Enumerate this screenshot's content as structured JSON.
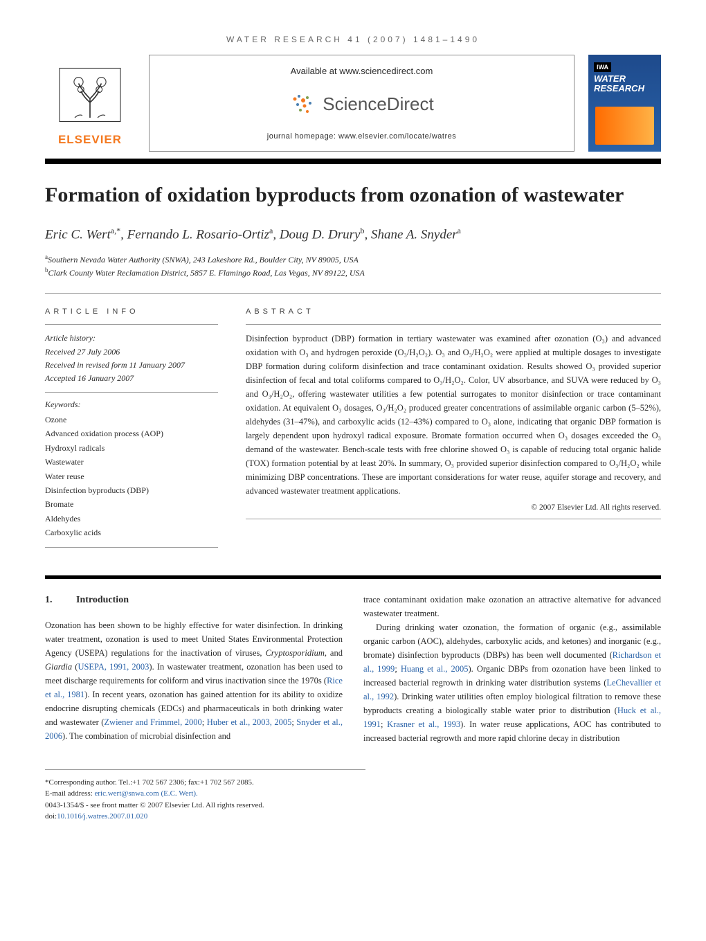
{
  "journal_ref": "WATER RESEARCH 41 (2007) 1481–1490",
  "banner": {
    "available": "Available at www.sciencedirect.com",
    "brand": "ScienceDirect",
    "homepage": "journal homepage: www.elsevier.com/locate/watres"
  },
  "elsevier": "ELSEVIER",
  "cover": {
    "iwa": "IWA",
    "title_line1": "WATER",
    "title_line2": "RESEARCH"
  },
  "title": "Formation of oxidation byproducts from ozonation of wastewater",
  "authors_html": "Eric C. Wert<sup>a,*</sup>, Fernando L. Rosario-Ortiz<sup>a</sup>, Doug D. Drury<sup>b</sup>, Shane A. Snyder<sup>a</sup>",
  "affiliations": {
    "a": "Southern Nevada Water Authority (SNWA), 243 Lakeshore Rd., Boulder City, NV 89005, USA",
    "b": "Clark County Water Reclamation District, 5857 E. Flamingo Road, Las Vegas, NV 89122, USA"
  },
  "labels": {
    "article_info": "ARTICLE INFO",
    "abstract": "ABSTRACT",
    "history": "Article history:",
    "keywords": "Keywords:"
  },
  "history": {
    "received": "Received 27 July 2006",
    "revised": "Received in revised form 11 January 2007",
    "accepted": "Accepted 16 January 2007"
  },
  "keywords": [
    "Ozone",
    "Advanced oxidation process (AOP)",
    "Hydroxyl radicals",
    "Wastewater",
    "Water reuse",
    "Disinfection byproducts (DBP)",
    "Bromate",
    "Aldehydes",
    "Carboxylic acids"
  ],
  "abstract": "Disinfection byproduct (DBP) formation in tertiary wastewater was examined after ozonation (O₃) and advanced oxidation with O₃ and hydrogen peroxide (O₃/H₂O₂). O₃ and O₃/H₂O₂ were applied at multiple dosages to investigate DBP formation during coliform disinfection and trace contaminant oxidation. Results showed O₃ provided superior disinfection of fecal and total coliforms compared to O₃/H₂O₂. Color, UV absorbance, and SUVA were reduced by O₃ and O₃/H₂O₂, offering wastewater utilities a few potential surrogates to monitor disinfection or trace contaminant oxidation. At equivalent O₃ dosages, O₃/H₂O₂ produced greater concentrations of assimilable organic carbon (5–52%), aldehydes (31–47%), and carboxylic acids (12–43%) compared to O₃ alone, indicating that organic DBP formation is largely dependent upon hydroxyl radical exposure. Bromate formation occurred when O₃ dosages exceeded the O₃ demand of the wastewater. Bench-scale tests with free chlorine showed O₃ is capable of reducing total organic halide (TOX) formation potential by at least 20%. In summary, O₃ provided superior disinfection compared to O₃/H₂O₂ while minimizing DBP concentrations. These are important considerations for water reuse, aquifer storage and recovery, and advanced wastewater treatment applications.",
  "copyright": "© 2007 Elsevier Ltd. All rights reserved.",
  "intro": {
    "num": "1.",
    "heading": "Introduction"
  },
  "body": {
    "col1_p1_html": "Ozonation has been shown to be highly effective for water disinfection. In drinking water treatment, ozonation is used to meet United States Environmental Protection Agency (USEPA) regulations for the inactivation of viruses, <i>Cryptosporidium</i>, and <i>Giardia</i> (<span class=\"ref-link\">USEPA, 1991, 2003</span>). In wastewater treatment, ozonation has been used to meet discharge requirements for coliform and virus inactivation since the 1970s (<span class=\"ref-link\">Rice et al., 1981</span>). In recent years, ozonation has gained attention for its ability to oxidize endocrine disrupting chemicals (EDCs) and pharmaceuticals in both drinking water and wastewater (<span class=\"ref-link\">Zwiener and Frimmel, 2000</span>; <span class=\"ref-link\">Huber et al., 2003, 2005</span>; <span class=\"ref-link\">Snyder et al., 2006</span>). The combination of microbial disinfection and",
    "col2_p1": "trace contaminant oxidation make ozonation an attractive alternative for advanced wastewater treatment.",
    "col2_p2_html": "During drinking water ozonation, the formation of organic (e.g., assimilable organic carbon (AOC), aldehydes, carboxylic acids, and ketones) and inorganic (e.g., bromate) disinfection byproducts (DBPs) has been well documented (<span class=\"ref-link\">Richardson et al., 1999</span>; <span class=\"ref-link\">Huang et al., 2005</span>). Organic DBPs from ozonation have been linked to increased bacterial regrowth in drinking water distribution systems (<span class=\"ref-link\">LeChevallier et al., 1992</span>). Drinking water utilities often employ biological filtration to remove these byproducts creating a biologically stable water prior to distribution (<span class=\"ref-link\">Huck et al., 1991</span>; <span class=\"ref-link\">Krasner et al., 1993</span>). In water reuse applications, AOC has contributed to increased bacterial regrowth and more rapid chlorine decay in distribution"
  },
  "footer": {
    "corresponding": "*Corresponding author. Tel.:+1 702 567 2306; fax:+1 702 567 2085.",
    "email_label": "E-mail address: ",
    "email": "eric.wert@snwa.com (E.C. Wert).",
    "issn": "0043-1354/$ - see front matter © 2007 Elsevier Ltd. All rights reserved.",
    "doi_label": "doi:",
    "doi": "10.1016/j.watres.2007.01.020"
  },
  "colors": {
    "text": "#2a2a2a",
    "link": "#2962a8",
    "elsevier_orange": "#f47920",
    "cover_blue": "#2962a8",
    "divider": "#999999"
  },
  "typography": {
    "title_fontsize": 30,
    "authors_fontsize": 19,
    "body_fontsize": 12.5,
    "abstract_fontsize": 12.5,
    "footer_fontsize": 11
  }
}
